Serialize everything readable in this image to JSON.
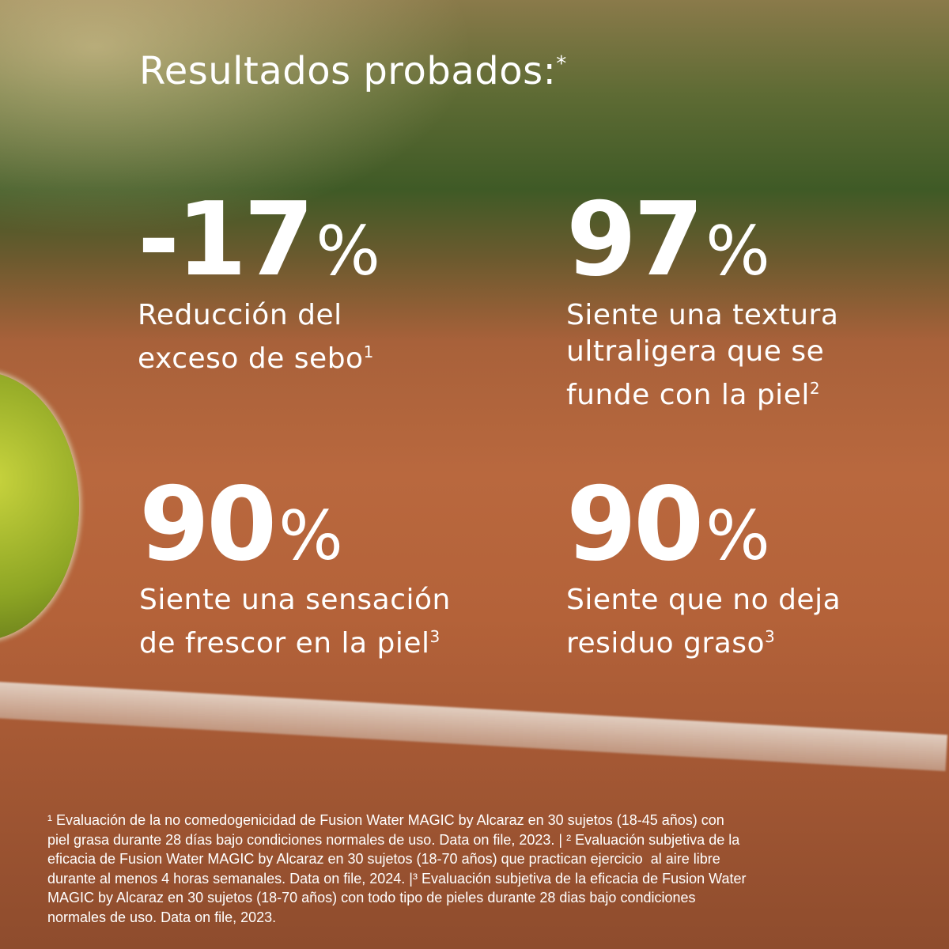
{
  "title": "Resultados probados:",
  "title_mark": "*",
  "stats": [
    {
      "value": "-17",
      "unit": "%",
      "desc_lines": [
        "Reducción del",
        "exceso de sebo"
      ],
      "note": "1"
    },
    {
      "value": "97",
      "unit": "%",
      "desc_lines": [
        "Siente una textura",
        "ultraligera que se",
        "funde con la piel"
      ],
      "note": "2"
    },
    {
      "value": "90",
      "unit": "%",
      "desc_lines": [
        "Siente una sensación",
        "de frescor en la piel"
      ],
      "note": "3"
    },
    {
      "value": "90",
      "unit": "%",
      "desc_lines": [
        "Siente que no deja",
        "residuo graso"
      ],
      "note": "3"
    }
  ],
  "footnote_lines": [
    "¹ Evaluación de la no comedogenicidad de Fusion Water MAGIC by Alcaraz en 30 sujetos (18-45 años) con",
    "piel grasa durante 28 días bajo condiciones normales de uso. Data on file, 2023. | ² Evaluación subjetiva de la",
    "eficacia de Fusion Water MAGIC by Alcaraz en 30 sujetos (18-70 años) que practican ejercicio  al aire libre",
    "durante al menos 4 horas semanales. Data on file, 2024. |³ Evaluación subjetiva de la eficacia de Fusion Water",
    "MAGIC by Alcaraz en 30 sujetos (18-70 años) con todo tipo de pieles durante 28 dias bajo condiciones",
    "normales de uso. Data on file, 2023."
  ]
}
